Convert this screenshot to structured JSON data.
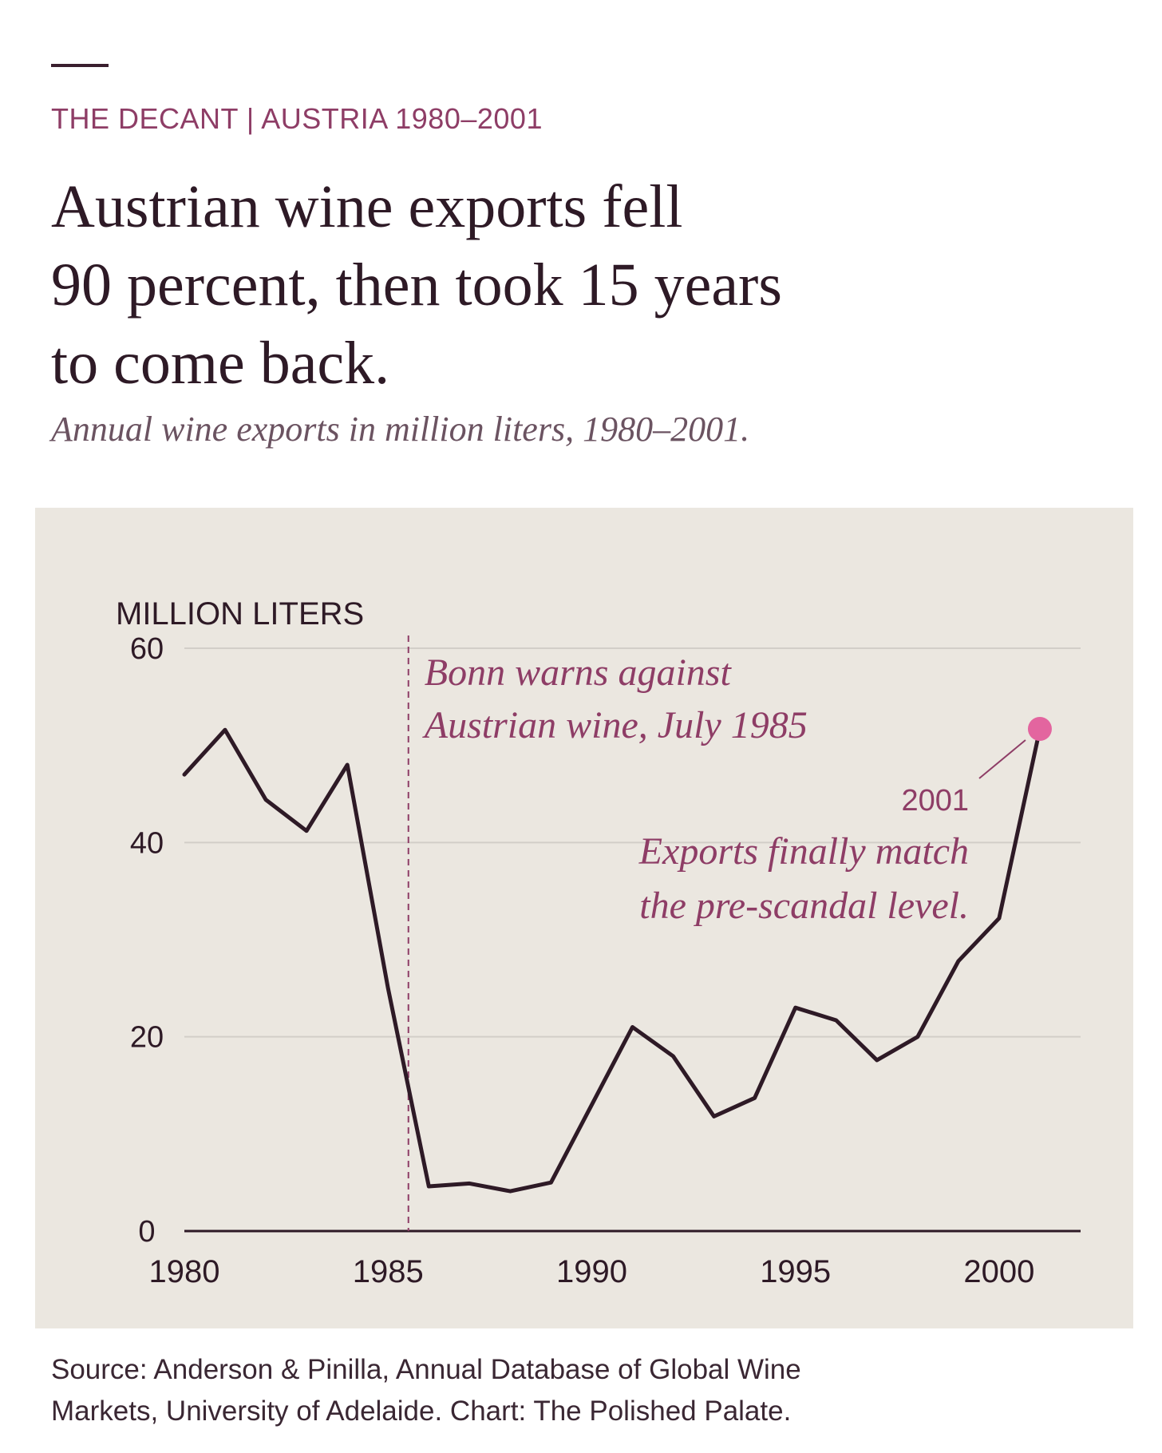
{
  "header": {
    "kicker": "THE DECANT | AUSTRIA 1980–2001",
    "headline_lines": [
      "Austrian wine exports fell",
      "90 percent, then took 15 years",
      "to come back."
    ],
    "subtitle": "Annual wine exports in million liters, 1980–2001."
  },
  "chart_data": {
    "type": "line",
    "title": "",
    "ylabel": "MILLION LITERS",
    "xlabel": "",
    "ylim": [
      0,
      60
    ],
    "xlim": [
      1980,
      2002
    ],
    "yticks": [
      0,
      20,
      40,
      60
    ],
    "xticks": [
      1980,
      1985,
      1990,
      1995,
      2000
    ],
    "grid": true,
    "x": [
      1980,
      1981,
      1982,
      1983,
      1984,
      1985,
      1986,
      1987,
      1988,
      1989,
      1990,
      1991,
      1992,
      1993,
      1994,
      1995,
      1996,
      1997,
      1998,
      1999,
      2000,
      2001
    ],
    "series": [
      {
        "values": [
          47.0,
          51.6,
          44.4,
          41.2,
          48.0,
          25.0,
          4.6,
          4.9,
          4.1,
          5.0,
          13.0,
          21.0,
          18.0,
          11.8,
          13.7,
          23.0,
          21.7,
          17.6,
          20.0,
          27.8,
          32.2,
          51.7
        ]
      }
    ],
    "colors": {
      "line": "#2e1a26",
      "highlight": "#e3659f",
      "annotation": "#8e3d66",
      "grid": "#d2cec8"
    },
    "event_line": {
      "x": 1985.5
    },
    "annotations": [
      {
        "lines": [
          "Bonn warns against",
          "Austrian wine, July 1985"
        ]
      },
      {
        "year_label": "2001",
        "lines": [
          "Exports finally match",
          "the pre-scandal level."
        ]
      }
    ]
  },
  "source": {
    "lines": [
      "Source: Anderson & Pinilla, Annual Database of Global Wine",
      "Markets, University of Adelaide. Chart: The Polished Palate."
    ]
  }
}
